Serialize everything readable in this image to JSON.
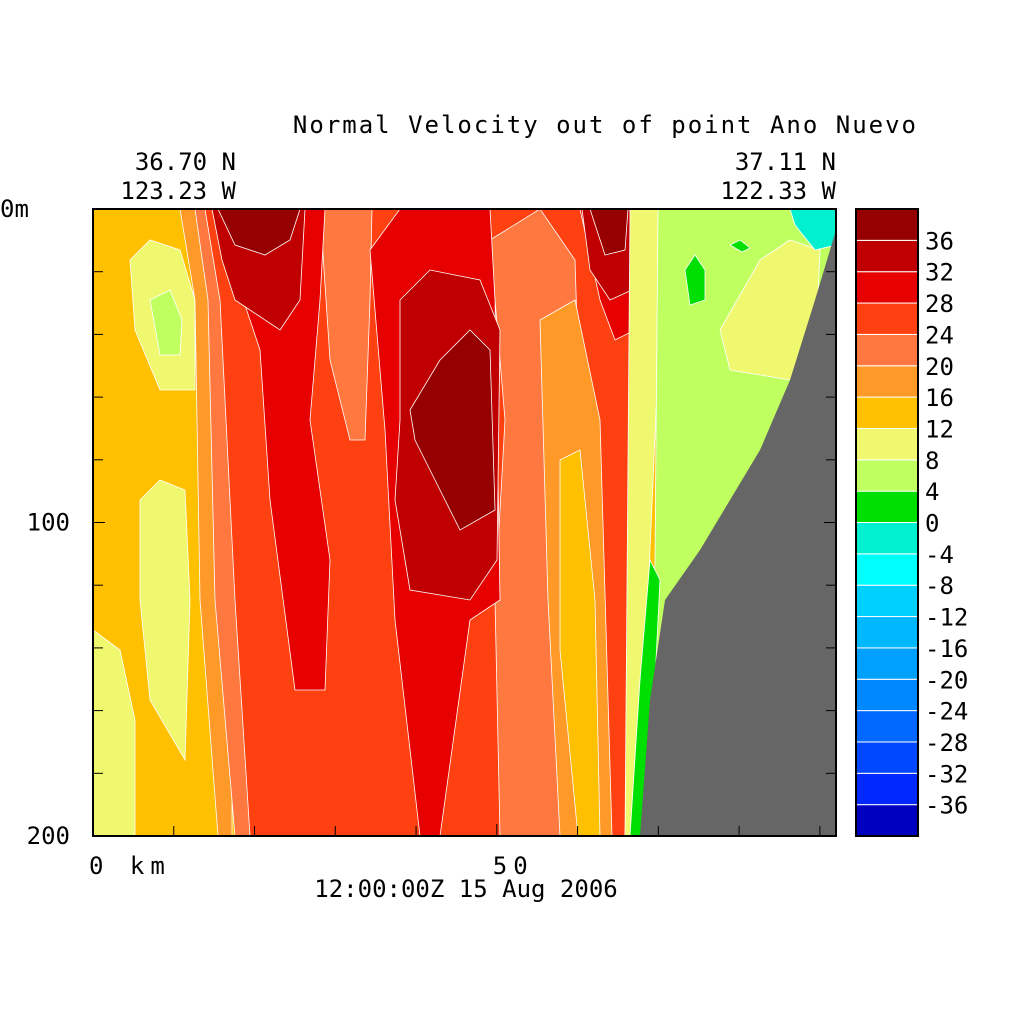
{
  "chart_data": {
    "type": "contour",
    "title": "Normal Velocity out of point Ano Nuevo",
    "start_lat": "36.70 N",
    "start_lon": "123.23 W",
    "end_lat": "37.11 N",
    "end_lon": "122.33 W",
    "time": "12:00:00Z  15 Aug 2006",
    "xlim": [
      0,
      92
    ],
    "xticks": [
      {
        "value": 0,
        "label": "0 km"
      },
      50
    ],
    "xminor": [
      10,
      20,
      30,
      40,
      60,
      70,
      80,
      90
    ],
    "ylim": [
      0,
      200
    ],
    "yticks": [
      {
        "value": 0,
        "label": "0m"
      },
      100,
      200
    ],
    "yminor": [
      20,
      40,
      60,
      80,
      120,
      140,
      160,
      180
    ],
    "levels": [
      -40,
      -36,
      -32,
      -28,
      -24,
      -20,
      -16,
      -12,
      -8,
      -4,
      0,
      4,
      8,
      12,
      16,
      20,
      24,
      28,
      32,
      36,
      40
    ],
    "colors": [
      "#0000c0",
      "#0028ff",
      "#0048ff",
      "#0068ff",
      "#0088ff",
      "#00a0ff",
      "#00b8ff",
      "#00d0ff",
      "#00ffff",
      "#00f0d0",
      "#00e000",
      "#c0ff60",
      "#f0f870",
      "#ffc000",
      "#ff9a28",
      "#ff7840",
      "#ff4010",
      "#e60000",
      "#c00000",
      "#960000"
    ],
    "colorbar_ticks": [
      -36,
      -32,
      -28,
      -24,
      -20,
      -16,
      -12,
      -8,
      -4,
      0,
      4,
      8,
      12,
      16,
      20,
      24,
      28,
      32,
      36
    ],
    "land_color": "#666666"
  }
}
